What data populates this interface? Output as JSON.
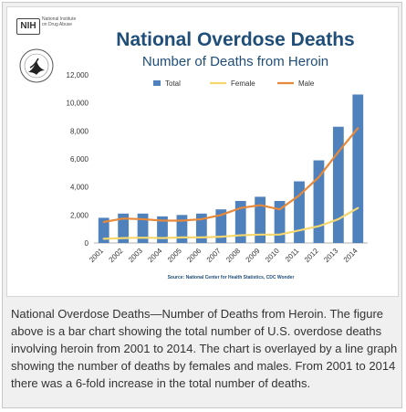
{
  "logo": {
    "nih": "NIH",
    "agency_line1": "National Institute",
    "agency_line2": "on Drug Abuse"
  },
  "caption": "National Overdose Deaths—Number of Deaths from Heroin. The figure above is a bar chart showing the total number of U.S. overdose deaths involving heroin from 2001 to 2014. The chart is overlayed by a line graph showing the number of deaths by females and males. From 2001 to 2014 there was a 6-fold increase in the total number of deaths.",
  "chart_data": {
    "type": "bar",
    "title": "National Overdose Deaths",
    "subtitle": "Number of Deaths from Heroin",
    "source": "Source: National Center for Health Statistics, CDC Wonder",
    "categories": [
      "2001",
      "2002",
      "2003",
      "2004",
      "2005",
      "2006",
      "2007",
      "2008",
      "2009",
      "2010",
      "2011",
      "2012",
      "2013",
      "2014"
    ],
    "ylim": [
      0,
      12000
    ],
    "yticks": [
      "0",
      "2,000",
      "4,000",
      "6,000",
      "8,000",
      "10,000",
      "12,000"
    ],
    "ytick_values": [
      0,
      2000,
      4000,
      6000,
      8000,
      10000,
      12000
    ],
    "grid": false,
    "legend_position": "top",
    "series": [
      {
        "name": "Total",
        "kind": "bar",
        "color": "#4f81bd",
        "values": [
          1800,
          2100,
          2100,
          1900,
          2000,
          2100,
          2400,
          3000,
          3300,
          3000,
          4400,
          5900,
          8300,
          10600
        ]
      },
      {
        "name": "Female",
        "kind": "line",
        "color": "#f5d76e",
        "values": [
          300,
          350,
          380,
          350,
          400,
          400,
          450,
          550,
          600,
          600,
          900,
          1200,
          1700,
          2500
        ]
      },
      {
        "name": "Male",
        "kind": "line",
        "color": "#e6893a",
        "values": [
          1500,
          1750,
          1700,
          1600,
          1600,
          1700,
          2000,
          2500,
          2700,
          2400,
          3400,
          4700,
          6500,
          8200
        ]
      }
    ]
  }
}
